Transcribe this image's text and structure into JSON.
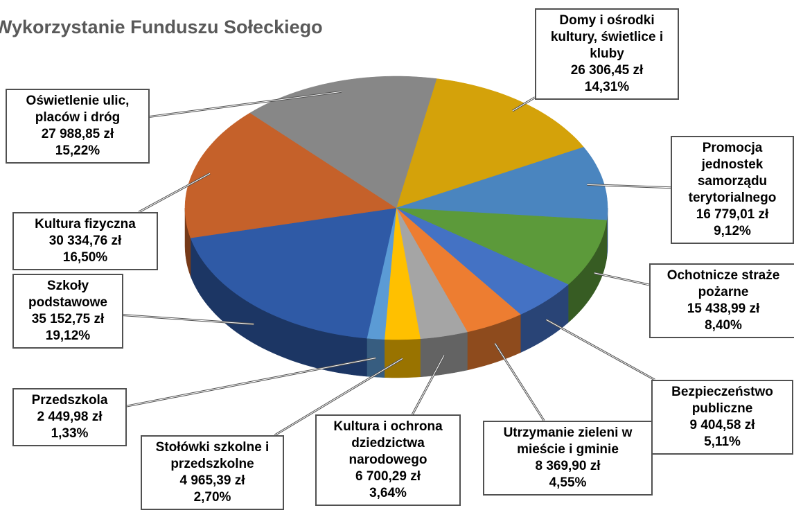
{
  "chart_data": {
    "type": "pie",
    "title": "Wykorzystanie Funduszu Sołeckiego",
    "categories": [
      "Domy i ośrodki kultury, świetlice i kluby",
      "Promocja jednostek samorządu terytorialnego",
      "Ochotnicze straże pożarne",
      "Bezpieczeństwo publiczne",
      "Utrzymanie zieleni w mieście i gminie",
      "Kultura i ochrona dziedzictwa narodowego",
      "Stołówki szkolne i przedszkolne",
      "Przedszkola",
      "Szkoły podstawowe",
      "Kultura fizyczna",
      "Oświetlenie ulic, placów i dróg"
    ],
    "values": [
      26306.45,
      16779.01,
      15438.99,
      9404.58,
      8369.9,
      6700.29,
      4965.39,
      2449.98,
      35152.75,
      30334.76,
      27988.85
    ],
    "value_labels": [
      "26 306,45 zł",
      "16 779,01 zł",
      "15 438,99 zł",
      "9 404,58 zł",
      "8 369,90 zł",
      "6 700,29 zł",
      "4 965,39 zł",
      "2 449,98 zł",
      "35 152,75 zł",
      "30 334,76 zł",
      "27 988,85 zł"
    ],
    "percents": [
      14.31,
      9.12,
      8.4,
      5.11,
      4.55,
      3.64,
      2.7,
      1.33,
      19.12,
      16.5,
      15.22
    ],
    "percent_labels": [
      "14,31%",
      "9,12%",
      "8,40%",
      "5,11%",
      "4,55%",
      "3,64%",
      "2,70%",
      "1,33%",
      "19,12%",
      "16,50%",
      "15,22%"
    ],
    "colors": [
      "#d4a20a",
      "#4a85bf",
      "#5c9a3a",
      "#4472c4",
      "#ed7d31",
      "#a5a5a5",
      "#ffc000",
      "#5b9bd5",
      "#2f5aa6",
      "#c5612a",
      "#878787"
    ]
  }
}
